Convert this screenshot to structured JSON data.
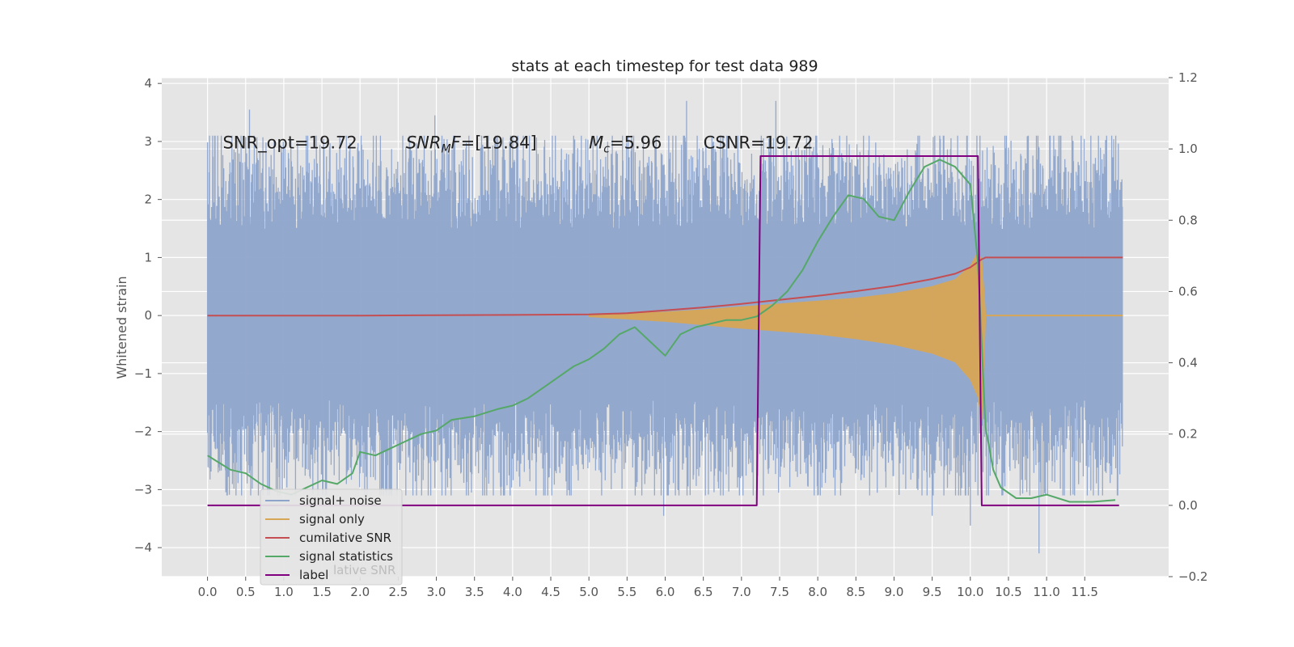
{
  "chart_data": {
    "type": "line",
    "title": "stats at each timestep for test data 989",
    "ylabel": "Whitened strain",
    "xlim": [
      -0.6,
      12.6
    ],
    "ylim": [
      -4.5,
      4.1
    ],
    "y2lim": [
      -0.2,
      1.2
    ],
    "x_ticks": [
      "0.0",
      "0.5",
      "1.0",
      "1.5",
      "2.0",
      "2.5",
      "3.0",
      "3.5",
      "4.0",
      "4.5",
      "5.0",
      "5.5",
      "6.0",
      "6.5",
      "7.0",
      "7.5",
      "8.0",
      "8.5",
      "9.0",
      "9.5",
      "10.0",
      "10.5",
      "11.0",
      "11.5"
    ],
    "y_ticks": [
      "4",
      "3",
      "2",
      "1",
      "0",
      "−1",
      "−2",
      "−3",
      "−4"
    ],
    "y2_ticks": [
      "1.2",
      "1.0",
      "0.8",
      "0.6",
      "0.4",
      "0.2",
      "0.0",
      "−0.2"
    ],
    "grid": true,
    "annotations": [
      {
        "text": "SNR_opt=19.72",
        "x": 0.2,
        "y": 2.88,
        "style": "plain"
      },
      {
        "base": "SNR",
        "sub": "M",
        "rest": "F=[19.84]",
        "x": 2.6,
        "y": 2.88,
        "style": "math"
      },
      {
        "base": "M",
        "sub": "c",
        "rest": "=5.96",
        "x": 5.0,
        "y": 2.88,
        "style": "math"
      },
      {
        "text": "CSNR=19.72",
        "x": 6.5,
        "y": 2.88,
        "style": "plain"
      }
    ],
    "series": [
      {
        "name": "signal+ noise",
        "axis": "left",
        "color": "#8ea4cb",
        "t_start": 0.0,
        "t_end": 12.0,
        "typical_range": [
          -2.6,
          2.6
        ],
        "peaks": [
          {
            "x": 0.55,
            "y": 3.55
          },
          {
            "x": 2.98,
            "y": 3.45
          },
          {
            "x": 6.28,
            "y": 3.7
          },
          {
            "x": 7.45,
            "y": 3.7
          },
          {
            "x": 5.98,
            "y": -3.45
          },
          {
            "x": 10.0,
            "y": -3.62
          },
          {
            "x": 10.9,
            "y": -4.1
          },
          {
            "x": 9.5,
            "y": -3.45
          }
        ]
      },
      {
        "name": "signal only",
        "axis": "left",
        "color": "#d8a657",
        "envelope": {
          "x": [
            5.0,
            6.0,
            6.5,
            7.0,
            7.5,
            8.0,
            8.5,
            9.0,
            9.5,
            9.8,
            10.0,
            10.1,
            10.15,
            10.2
          ],
          "upper": [
            0.02,
            0.06,
            0.1,
            0.15,
            0.2,
            0.25,
            0.3,
            0.38,
            0.5,
            0.62,
            0.85,
            1.1,
            0.95,
            0.03
          ],
          "lower": [
            -0.02,
            -0.1,
            -0.16,
            -0.22,
            -0.27,
            -0.32,
            -0.4,
            -0.5,
            -0.65,
            -0.8,
            -1.1,
            -1.4,
            -1.8,
            -0.03
          ]
        }
      },
      {
        "name": "cumilative SNR",
        "axis": "left",
        "color": "#c44e52",
        "x": [
          0.0,
          2.0,
          4.0,
          5.0,
          5.5,
          6.0,
          6.5,
          7.0,
          7.5,
          8.0,
          8.5,
          9.0,
          9.5,
          9.8,
          10.0,
          10.15,
          10.2,
          12.0
        ],
        "y": [
          0.0,
          0.0,
          0.01,
          0.02,
          0.04,
          0.09,
          0.14,
          0.2,
          0.27,
          0.34,
          0.42,
          0.51,
          0.63,
          0.72,
          0.83,
          0.97,
          1.0,
          1.0
        ]
      },
      {
        "name": "signal statistics",
        "axis": "right",
        "color": "#55a868",
        "x": [
          0.0,
          0.15,
          0.3,
          0.5,
          0.7,
          0.9,
          1.1,
          1.3,
          1.5,
          1.7,
          1.9,
          2.0,
          2.2,
          2.4,
          2.6,
          2.8,
          3.0,
          3.2,
          3.5,
          3.8,
          4.0,
          4.2,
          4.4,
          4.6,
          4.8,
          5.0,
          5.2,
          5.4,
          5.6,
          5.8,
          6.0,
          6.2,
          6.4,
          6.6,
          6.8,
          7.0,
          7.2,
          7.4,
          7.6,
          7.8,
          8.0,
          8.2,
          8.4,
          8.6,
          8.8,
          9.0,
          9.2,
          9.4,
          9.6,
          9.8,
          10.0,
          10.1,
          10.2,
          10.3,
          10.4,
          10.6,
          10.8,
          11.0,
          11.3,
          11.6,
          11.9
        ],
        "y": [
          0.14,
          0.12,
          0.1,
          0.09,
          0.06,
          0.04,
          0.03,
          0.05,
          0.07,
          0.06,
          0.09,
          0.15,
          0.14,
          0.16,
          0.18,
          0.2,
          0.21,
          0.24,
          0.25,
          0.27,
          0.28,
          0.3,
          0.33,
          0.36,
          0.39,
          0.41,
          0.44,
          0.48,
          0.5,
          0.46,
          0.42,
          0.48,
          0.5,
          0.51,
          0.52,
          0.52,
          0.53,
          0.56,
          0.6,
          0.66,
          0.74,
          0.81,
          0.87,
          0.86,
          0.81,
          0.8,
          0.88,
          0.95,
          0.97,
          0.95,
          0.9,
          0.68,
          0.22,
          0.1,
          0.05,
          0.02,
          0.02,
          0.03,
          0.01,
          0.01,
          0.015
        ]
      },
      {
        "name": "label",
        "axis": "right",
        "color": "#800080",
        "x": [
          0.0,
          7.2,
          7.25,
          10.1,
          10.15,
          11.95
        ],
        "y": [
          0.0,
          0.0,
          0.98,
          0.98,
          0.0,
          0.0
        ]
      }
    ],
    "legend": {
      "placement": "lower-left",
      "entries": [
        "signal+ noise",
        "signal only",
        "cumilative SNR",
        "signal statistics",
        "label"
      ],
      "obscured_text": "lative SNR"
    }
  }
}
